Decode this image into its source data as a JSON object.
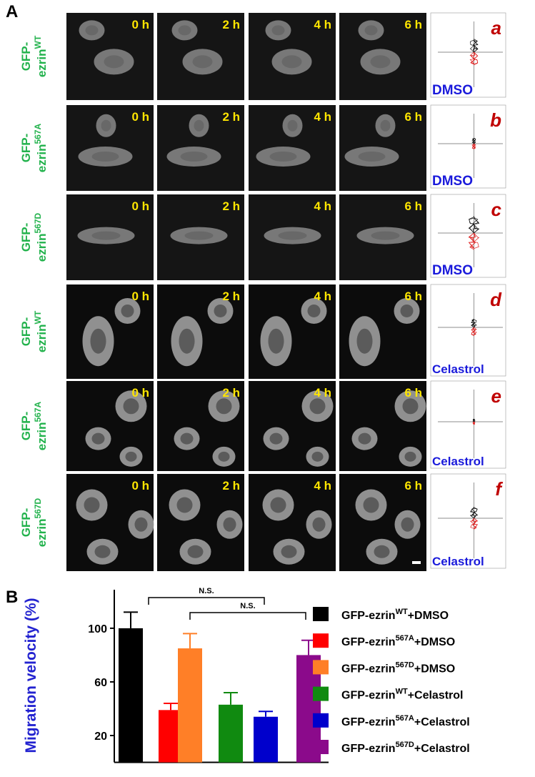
{
  "panel_a": {
    "label": "A",
    "time_labels": [
      "0 h",
      "2 h",
      "4 h",
      "6 h"
    ],
    "rows": [
      {
        "construct": [
          "GFP-",
          "ezrin",
          "WT"
        ],
        "letter": "a",
        "treatment": "DMSO"
      },
      {
        "construct": [
          "GFP-",
          "ezrin",
          "567A"
        ],
        "letter": "b",
        "treatment": "DMSO"
      },
      {
        "construct": [
          "GFP-",
          "ezrin",
          "567D"
        ],
        "letter": "c",
        "treatment": "DMSO"
      },
      {
        "construct": [
          "GFP-",
          "ezrin",
          "WT"
        ],
        "letter": "d",
        "treatment": "Celastrol"
      },
      {
        "construct": [
          "GFP-",
          "ezrin",
          "567A"
        ],
        "letter": "e",
        "treatment": "Celastrol"
      },
      {
        "construct": [
          "GFP-",
          "ezrin",
          "567D"
        ],
        "letter": "f",
        "treatment": "Celastrol"
      }
    ]
  },
  "chart_data": {
    "type": "bar",
    "panel_label": "B",
    "y_label": "Migration velocity (%)",
    "categories": [
      [
        "GFP-ezrin",
        "WT",
        "+DMSO"
      ],
      [
        "GFP-ezrin",
        "567A",
        "+DMSO"
      ],
      [
        "GFP-ezrin",
        "567D",
        "+DMSO"
      ],
      [
        "GFP-ezrin",
        "WT",
        "+Celastrol"
      ],
      [
        "GFP-ezrin",
        "567A",
        "+Celastrol"
      ],
      [
        "GFP-ezrin",
        "567D",
        "+Celastrol"
      ]
    ],
    "values": [
      100,
      39,
      85,
      43,
      34,
      80
    ],
    "errors": [
      12,
      5,
      11,
      9,
      4,
      11
    ],
    "colors": [
      "#000000",
      "#ff0000",
      "#ff7f27",
      "#108a10",
      "#0000cc",
      "#8b0a8b"
    ],
    "ylim": [
      0,
      125
    ],
    "yticks": [
      20,
      60,
      100
    ],
    "annotations": [
      "N.S.",
      "N.S."
    ]
  }
}
